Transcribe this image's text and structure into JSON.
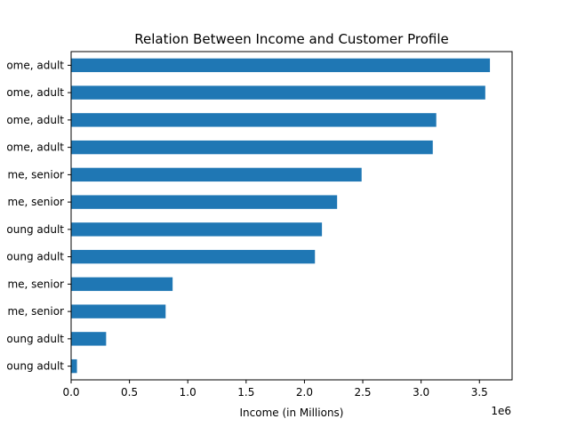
{
  "chart_data": {
    "type": "bar",
    "orientation": "horizontal",
    "title": "Relation Between Income and Customer Profile",
    "xlabel": "Income (in Millions)",
    "ylabel": "",
    "x_scale_label": "1e6",
    "xlim": [
      0,
      3780000
    ],
    "xticks": [
      0,
      500000,
      1000000,
      1500000,
      2000000,
      2500000,
      3000000,
      3500000
    ],
    "xtick_labels": [
      "0.0",
      "0.5",
      "1.0",
      "1.5",
      "2.0",
      "2.5",
      "3.0",
      "3.5"
    ],
    "bar_color": "#1f77b4",
    "categories": [
      "ome, adult",
      "ome, adult",
      "ome, adult",
      "ome, adult",
      "me, senior",
      "me, senior",
      "oung adult",
      "oung adult",
      "me, senior",
      "me, senior",
      "oung adult",
      "oung adult"
    ],
    "values": [
      3590000,
      3550000,
      3130000,
      3100000,
      2490000,
      2280000,
      2150000,
      2090000,
      870000,
      810000,
      300000,
      50000
    ]
  }
}
